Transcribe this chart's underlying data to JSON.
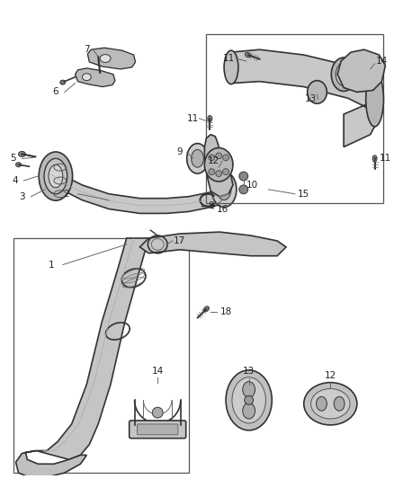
{
  "bg_color": "#ffffff",
  "figsize": [
    4.38,
    5.33
  ],
  "dpi": 100,
  "line_color": "#333333",
  "label_color": "#222222",
  "label_fontsize": 7.5,
  "leader_color": "#666666",
  "part_fill": "#d0d0d0",
  "part_edge": "#333333",
  "box_color": "#444444",
  "lw_main": 1.2,
  "lw_thin": 0.7,
  "lw_part": 1.0
}
